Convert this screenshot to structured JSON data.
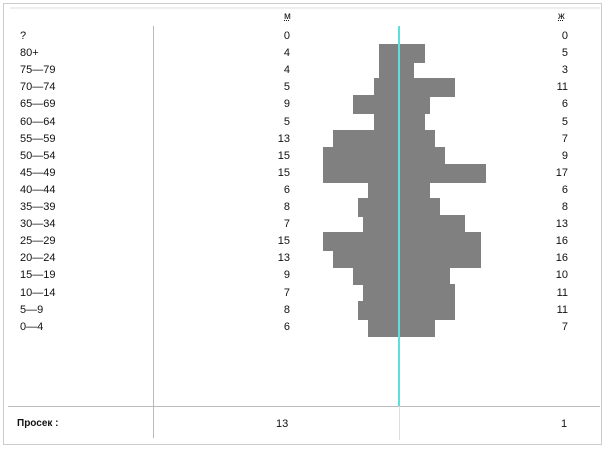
{
  "chart_data": {
    "type": "bar",
    "orientation": "horizontal-pyramid",
    "headers": {
      "male": "м",
      "female": "ж"
    },
    "categories": [
      "?",
      "80+",
      "75—79",
      "70—74",
      "65—69",
      "60—64",
      "55—59",
      "50—54",
      "45—49",
      "40—44",
      "35—39",
      "30—34",
      "25—29",
      "20—24",
      "15—19",
      "10—14",
      "5—9",
      "0—4"
    ],
    "series": [
      {
        "name": "м",
        "values": [
          0,
          4,
          4,
          5,
          9,
          5,
          13,
          15,
          15,
          6,
          8,
          7,
          15,
          13,
          9,
          7,
          8,
          6
        ]
      },
      {
        "name": "ж",
        "values": [
          0,
          5,
          3,
          11,
          6,
          5,
          7,
          9,
          17,
          6,
          8,
          13,
          16,
          16,
          10,
          11,
          11,
          7
        ]
      }
    ],
    "colors": {
      "bar": "#808080",
      "axis": "#5ddfe0"
    },
    "footer": {
      "label": "Просек :",
      "male": "13",
      "female": "1"
    }
  }
}
